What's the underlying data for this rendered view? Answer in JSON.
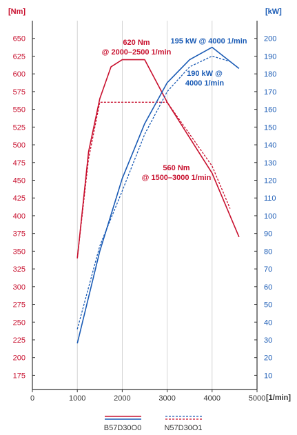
{
  "chart_data": {
    "type": "line",
    "x_unit_label": "[1/min]",
    "y_left_unit_label": "[Nm]",
    "y_right_unit_label": "[kW]",
    "x_ticks": [
      0,
      1000,
      2000,
      3000,
      4000,
      5000
    ],
    "xlim": [
      0,
      5000
    ],
    "y_left_ticks": [
      175,
      200,
      225,
      250,
      275,
      300,
      325,
      350,
      375,
      400,
      425,
      450,
      475,
      500,
      525,
      550,
      575,
      600,
      625,
      650
    ],
    "y_left_lim": [
      155,
      675
    ],
    "y_right_ticks": [
      10,
      20,
      30,
      40,
      50,
      60,
      70,
      80,
      90,
      100,
      110,
      120,
      130,
      140,
      150,
      160,
      170,
      180,
      190,
      200
    ],
    "y_right_lim": [
      2,
      210
    ],
    "grid": "vertical",
    "colors": {
      "torque": "#c8102e",
      "power": "#1a5bb5",
      "axis": "#333333"
    },
    "series": [
      {
        "name": "B57D30O0",
        "quantity": "torque",
        "axis": "left",
        "style": "solid",
        "x": [
          1000,
          1250,
          1500,
          1750,
          2000,
          2500,
          3000,
          3500,
          4000,
          4600
        ],
        "y": [
          340,
          490,
          565,
          610,
          620,
          620,
          560,
          510,
          460,
          370
        ]
      },
      {
        "name": "N57D30O1",
        "quantity": "torque",
        "axis": "left",
        "style": "dashed",
        "x": [
          1000,
          1250,
          1500,
          2000,
          2500,
          3000,
          3500,
          4000,
          4400
        ],
        "y": [
          340,
          480,
          560,
          560,
          560,
          560,
          515,
          470,
          410
        ]
      },
      {
        "name": "B57D30O0",
        "quantity": "power",
        "axis": "right",
        "style": "solid",
        "x": [
          1000,
          1500,
          2000,
          2500,
          3000,
          3500,
          4000,
          4600
        ],
        "y": [
          28,
          80,
          121,
          152,
          175,
          188,
          195,
          183
        ]
      },
      {
        "name": "N57D30O1",
        "quantity": "power",
        "axis": "right",
        "style": "dashed",
        "x": [
          1000,
          1500,
          2000,
          2500,
          3000,
          3500,
          4000,
          4400
        ],
        "y": [
          36,
          83,
          114,
          146,
          170,
          184,
          190,
          187
        ]
      }
    ],
    "annotations": {
      "peak_torque_b57": [
        "620 Nm",
        "@ 2000–2500 1/min"
      ],
      "peak_torque_n57": [
        "560 Nm",
        "@ 1500–3000 1/min"
      ],
      "peak_power_b57": "195 kW @ 4000 1/min",
      "peak_power_n57": [
        "190 kW @",
        "4000 1/min"
      ]
    },
    "legend": {
      "position": "bottom",
      "items": [
        {
          "label": "B57D30O0",
          "style": "solid"
        },
        {
          "label": "N57D30O1",
          "style": "dashed"
        }
      ]
    }
  }
}
